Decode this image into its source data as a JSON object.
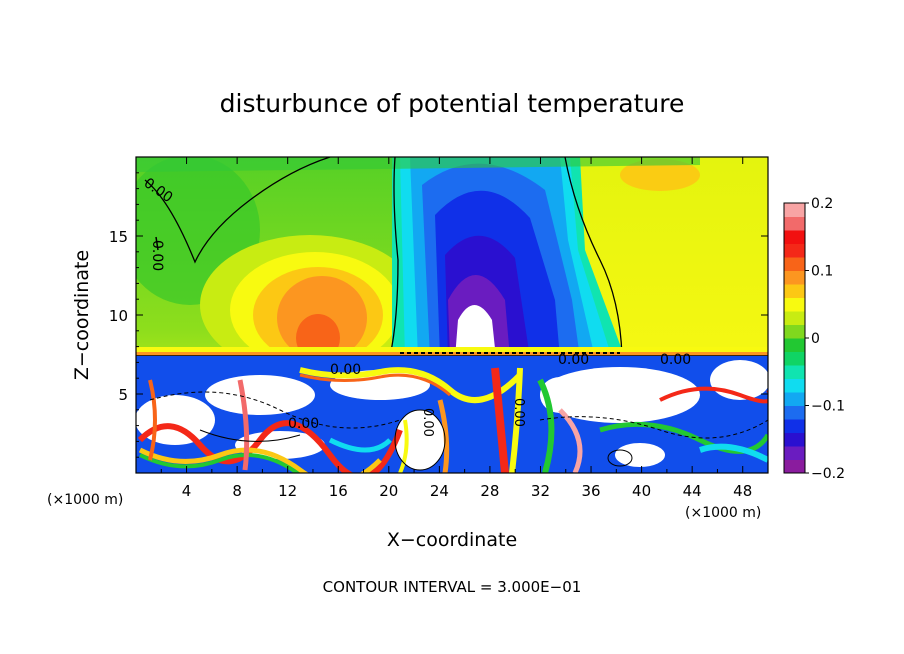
{
  "chart_data": {
    "type": "heatmap",
    "title": "disturbunce of potential temperature",
    "xlabel": "X−coordinate",
    "ylabel": "Z−coordinate",
    "x_unit": "(×1000 m)",
    "x_unit_right": "(×1000 m)",
    "footer": "CONTOUR INTERVAL = 3.000E−01",
    "xlim": [
      0,
      50
    ],
    "ylim": [
      0,
      20
    ],
    "x_ticks": [
      4,
      8,
      12,
      16,
      20,
      24,
      28,
      32,
      36,
      40,
      44,
      48
    ],
    "y_ticks": [
      5,
      10,
      15
    ],
    "colorbar": {
      "range": [
        -0.2,
        0.2
      ],
      "ticks": [
        {
          "value": 0.2,
          "label": "0.2"
        },
        {
          "value": 0.1,
          "label": "0.1"
        },
        {
          "value": 0,
          "label": "0"
        },
        {
          "value": -0.1,
          "label": "−0.1"
        },
        {
          "value": -0.2,
          "label": "−0.2"
        }
      ],
      "colors": [
        "#8a1c9e",
        "#6a1cc0",
        "#2a10d0",
        "#1030e8",
        "#1c6cf0",
        "#12a8f2",
        "#10dcf0",
        "#10e4b0",
        "#10d464",
        "#22c832",
        "#80d81e",
        "#c8ec12",
        "#f8fa10",
        "#fcc814",
        "#fc9620",
        "#f86418",
        "#f42818",
        "#f21010",
        "#f26a6a",
        "#f8a4a4"
      ]
    },
    "contour_labels": [
      "0.00",
      "0.00",
      "0.00",
      "0.00",
      "0.00",
      "0.00",
      "0.00",
      "0.00"
    ],
    "features": [
      {
        "name": "positive anomaly",
        "x": 14.5,
        "z": 12,
        "value": 0.12
      },
      {
        "name": "negative anomaly",
        "x": 27,
        "z": 13,
        "value": -0.2
      },
      {
        "name": "positive anomaly",
        "x": 43,
        "z": 17,
        "value": 0.08
      },
      {
        "name": "boundary layer turbulence",
        "z_range": [
          0,
          7.5
        ]
      }
    ]
  }
}
